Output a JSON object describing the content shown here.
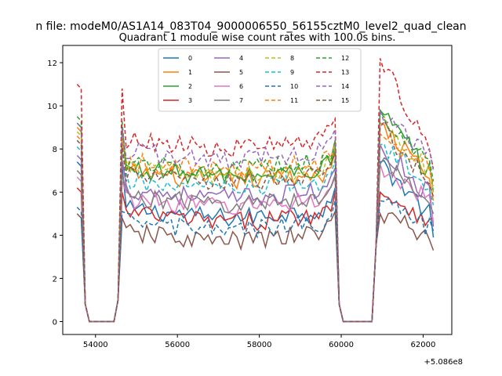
{
  "chart_data": {
    "type": "line",
    "suptitle": "n file: modeM0/AS1A14_083T04_9000006550_56155cztM0_level2_quad_clean",
    "title": "Quadrant 1 module wise count rates with 100.0s bins.",
    "xlabel": "",
    "ylabel": "",
    "x_offset_label": "+5.086e8",
    "xlim": [
      53200,
      62700
    ],
    "ylim": [
      -0.6,
      12.8
    ],
    "xticks": [
      54000,
      56000,
      58000,
      60000,
      62000
    ],
    "yticks": [
      0,
      2,
      4,
      6,
      8,
      10,
      12
    ],
    "xtick_labels": [
      "54000",
      "56000",
      "58000",
      "60000",
      "62000"
    ],
    "ytick_labels": [
      "0",
      "2",
      "4",
      "6",
      "8",
      "10",
      "12"
    ],
    "x_start": 53550,
    "x_step": 100,
    "legend_location": "upper center",
    "legend_columns": 4,
    "segments": [
      {
        "x0": 53550,
        "x1": 53650,
        "kind": "ramp-start"
      },
      {
        "x0": 54650,
        "x1": 59850,
        "kind": "plateau"
      },
      {
        "x0": 60950,
        "x1": 62250,
        "kind": "plateau"
      }
    ],
    "series": [
      {
        "name": "0",
        "color": "#1f77b4",
        "dashed": false,
        "base": 5.0,
        "peak1": 7.2,
        "peak2": 7.4,
        "end": 3.9
      },
      {
        "name": "1",
        "color": "#ff7f0e",
        "dashed": false,
        "base": 6.7,
        "peak1": 8.8,
        "peak2": 9.2,
        "end": 5.6
      },
      {
        "name": "2",
        "color": "#2ca02c",
        "dashed": false,
        "base": 6.9,
        "peak1": 9.0,
        "peak2": 9.8,
        "end": 6.0
      },
      {
        "name": "3",
        "color": "#d62728",
        "dashed": false,
        "base": 4.8,
        "peak1": 6.0,
        "peak2": 6.0,
        "end": 4.8
      },
      {
        "name": "4",
        "color": "#9467bd",
        "dashed": false,
        "base": 5.9,
        "peak1": 7.5,
        "peak2": 8.2,
        "end": 4.4
      },
      {
        "name": "5",
        "color": "#8c564b",
        "dashed": false,
        "base": 3.9,
        "peak1": 4.8,
        "peak2": 5.0,
        "end": 3.3
      },
      {
        "name": "6",
        "color": "#e377c2",
        "dashed": false,
        "base": 5.5,
        "peak1": 6.5,
        "peak2": 7.3,
        "end": 4.6
      },
      {
        "name": "7",
        "color": "#7f7f7f",
        "dashed": false,
        "base": 5.6,
        "peak1": 6.8,
        "peak2": 7.3,
        "end": 5.0
      },
      {
        "name": "8",
        "color": "#bcbd22",
        "dashed": true,
        "base": 6.9,
        "peak1": 8.6,
        "peak2": 9.4,
        "end": 6.0
      },
      {
        "name": "9",
        "color": "#17becf",
        "dashed": true,
        "base": 6.3,
        "peak1": 7.9,
        "peak2": 8.2,
        "end": 5.4
      },
      {
        "name": "10",
        "color": "#1f77b4",
        "dashed": true,
        "base": 4.4,
        "peak1": 5.1,
        "peak2": 5.6,
        "end": 4.2
      },
      {
        "name": "11",
        "color": "#ff7f0e",
        "dashed": true,
        "base": 7.2,
        "peak1": 8.4,
        "peak2": 8.7,
        "end": 6.3
      },
      {
        "name": "12",
        "color": "#2ca02c",
        "dashed": true,
        "base": 7.2,
        "peak1": 9.3,
        "peak2": 9.8,
        "end": 6.5
      },
      {
        "name": "13",
        "color": "#d62728",
        "dashed": true,
        "base": 8.2,
        "peak1": 10.8,
        "peak2": 12.2,
        "end": 7.1
      },
      {
        "name": "14",
        "color": "#9467bd",
        "dashed": true,
        "base": 7.7,
        "peak1": 9.0,
        "peak2": 9.8,
        "end": 7.0
      },
      {
        "name": "15",
        "color": "#8c564b",
        "dashed": true,
        "base": 6.6,
        "peak1": 8.2,
        "peak2": 9.0,
        "end": 5.8
      }
    ]
  }
}
